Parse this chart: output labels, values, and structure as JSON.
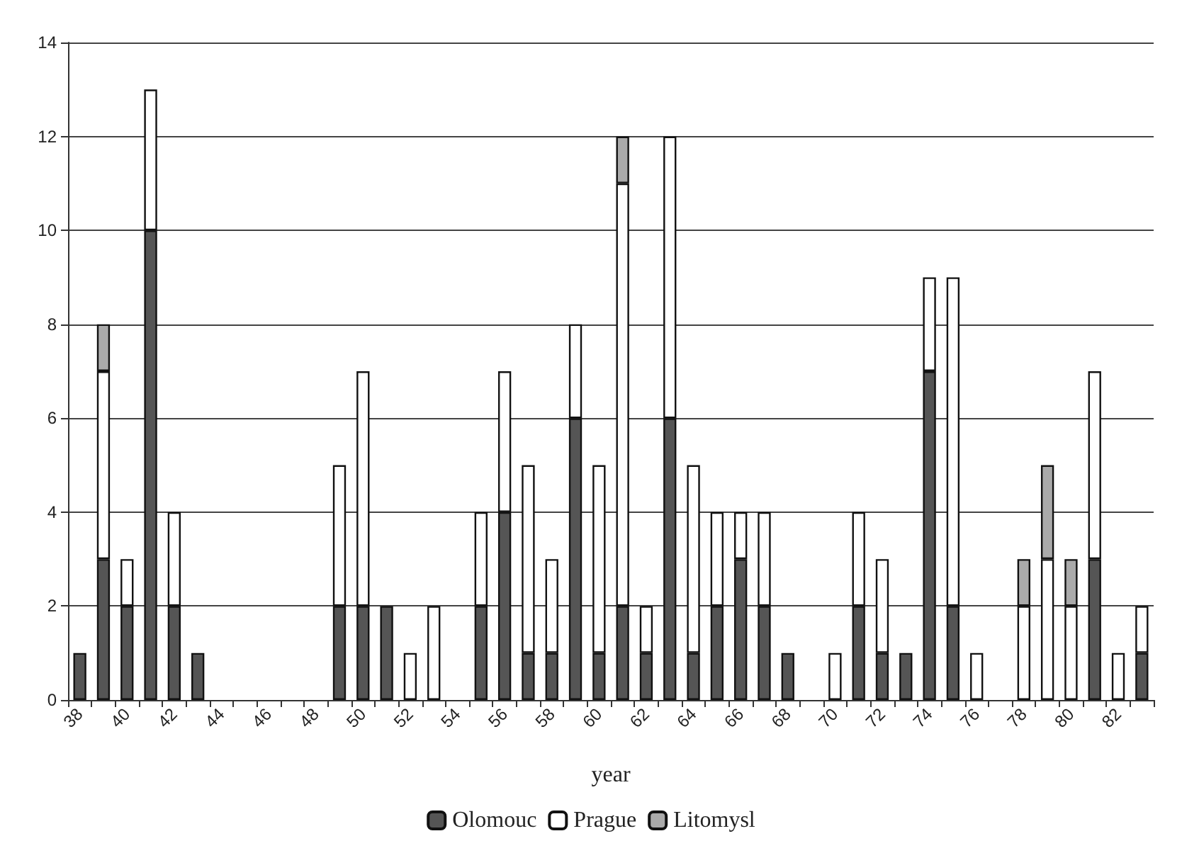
{
  "chart_data": {
    "type": "bar",
    "stacked": true,
    "xlabel": "year",
    "categories": [
      "38",
      null,
      "40",
      null,
      "42",
      null,
      "44",
      null,
      "46",
      null,
      "48",
      null,
      "50",
      null,
      "52",
      null,
      "54",
      null,
      "56",
      null,
      "58",
      null,
      "60",
      null,
      "62",
      null,
      "64",
      null,
      "66",
      null,
      "68",
      null,
      "70",
      null,
      "72",
      null,
      "74",
      null,
      "76",
      null,
      "78",
      null,
      "80",
      null,
      "82",
      null
    ],
    "series": [
      {
        "name": "Olomouc",
        "color": "#555555",
        "values": [
          1,
          3,
          2,
          10,
          2,
          1,
          null,
          null,
          null,
          null,
          null,
          2,
          2,
          2,
          null,
          null,
          null,
          2,
          4,
          1,
          1,
          6,
          1,
          2,
          1,
          6,
          1,
          2,
          3,
          2,
          1,
          null,
          null,
          2,
          1,
          1,
          7,
          2,
          null,
          null,
          null,
          null,
          null,
          3,
          null,
          1
        ]
      },
      {
        "name": "Prague",
        "color": "#ffffff",
        "values": [
          null,
          4,
          1,
          3,
          2,
          null,
          null,
          null,
          null,
          null,
          null,
          3,
          5,
          null,
          1,
          2,
          null,
          2,
          3,
          4,
          2,
          2,
          4,
          9,
          1,
          6,
          4,
          2,
          1,
          2,
          null,
          null,
          1,
          2,
          2,
          null,
          2,
          7,
          1,
          null,
          2,
          3,
          2,
          4,
          1,
          1
        ]
      },
      {
        "name": "Litomysl",
        "color": "#aaaaaa",
        "values": [
          null,
          1,
          null,
          null,
          null,
          null,
          null,
          null,
          null,
          null,
          null,
          null,
          null,
          null,
          null,
          null,
          null,
          null,
          null,
          null,
          null,
          null,
          null,
          1,
          null,
          null,
          null,
          null,
          null,
          null,
          null,
          null,
          null,
          null,
          null,
          null,
          null,
          null,
          null,
          null,
          1,
          2,
          1,
          null,
          null,
          null
        ]
      }
    ],
    "ylim": [
      0,
      14
    ],
    "yticks": [
      0,
      2,
      4,
      6,
      8,
      10,
      12,
      14
    ],
    "grid": "y",
    "legend": "bottom"
  }
}
